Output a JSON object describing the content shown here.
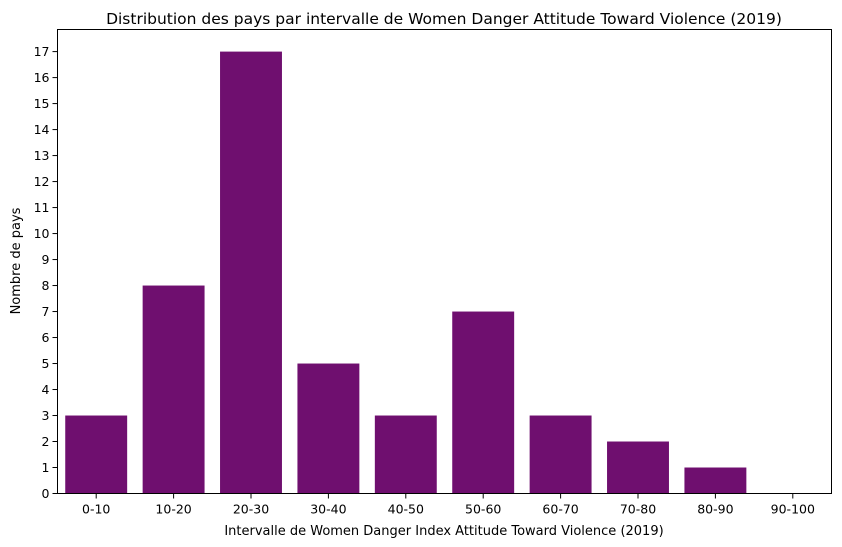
{
  "chart_data": {
    "type": "bar",
    "title": "Distribution des pays par intervalle de Women Danger Attitude Toward Violence (2019)",
    "xlabel": "Intervalle de Women Danger Index Attitude Toward Violence (2019)",
    "ylabel": "Nombre de pays",
    "categories": [
      "0-10",
      "10-20",
      "20-30",
      "30-40",
      "40-50",
      "50-60",
      "60-70",
      "70-80",
      "80-90",
      "90-100"
    ],
    "values": [
      3,
      8,
      17,
      5,
      3,
      7,
      3,
      2,
      1,
      0
    ],
    "ylim": [
      0,
      17.85
    ],
    "yticks": [
      0,
      1,
      2,
      3,
      4,
      5,
      6,
      7,
      8,
      9,
      10,
      11,
      12,
      13,
      14,
      15,
      16,
      17
    ],
    "grid": false,
    "bar_color": "#6f0f6f"
  }
}
